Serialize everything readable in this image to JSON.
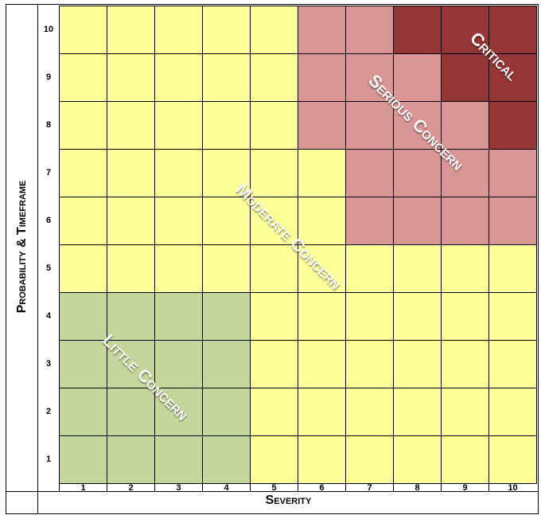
{
  "axes": {
    "x_title": "Severity",
    "y_title": "Probability & Timeframe",
    "x_ticks": [
      "1",
      "2",
      "3",
      "4",
      "5",
      "6",
      "7",
      "8",
      "9",
      "10"
    ],
    "y_ticks": [
      "10",
      "9",
      "8",
      "7",
      "6",
      "5",
      "4",
      "3",
      "2",
      "1"
    ]
  },
  "zones": {
    "critical": "Critical",
    "serious": "Serious Concern",
    "moderate": "Moderate Concern",
    "little": "Little Concern"
  },
  "colors": {
    "yellow": "#ffff99",
    "pink": "#da9694",
    "darkred": "#953735",
    "green": "#c4d79b"
  },
  "matrix": [
    [
      "Y",
      "Y",
      "Y",
      "Y",
      "Y",
      "P",
      "P",
      "D",
      "D",
      "D"
    ],
    [
      "Y",
      "Y",
      "Y",
      "Y",
      "Y",
      "P",
      "P",
      "P",
      "D",
      "D"
    ],
    [
      "Y",
      "Y",
      "Y",
      "Y",
      "Y",
      "P",
      "P",
      "P",
      "P",
      "D"
    ],
    [
      "Y",
      "Y",
      "Y",
      "Y",
      "Y",
      "Y",
      "P",
      "P",
      "P",
      "P"
    ],
    [
      "Y",
      "Y",
      "Y",
      "Y",
      "Y",
      "Y",
      "P",
      "P",
      "P",
      "P"
    ],
    [
      "Y",
      "Y",
      "Y",
      "Y",
      "Y",
      "Y",
      "Y",
      "Y",
      "Y",
      "Y"
    ],
    [
      "G",
      "G",
      "G",
      "G",
      "Y",
      "Y",
      "Y",
      "Y",
      "Y",
      "Y"
    ],
    [
      "G",
      "G",
      "G",
      "G",
      "Y",
      "Y",
      "Y",
      "Y",
      "Y",
      "Y"
    ],
    [
      "G",
      "G",
      "G",
      "G",
      "Y",
      "Y",
      "Y",
      "Y",
      "Y",
      "Y"
    ],
    [
      "G",
      "G",
      "G",
      "G",
      "Y",
      "Y",
      "Y",
      "Y",
      "Y",
      "Y"
    ]
  ]
}
